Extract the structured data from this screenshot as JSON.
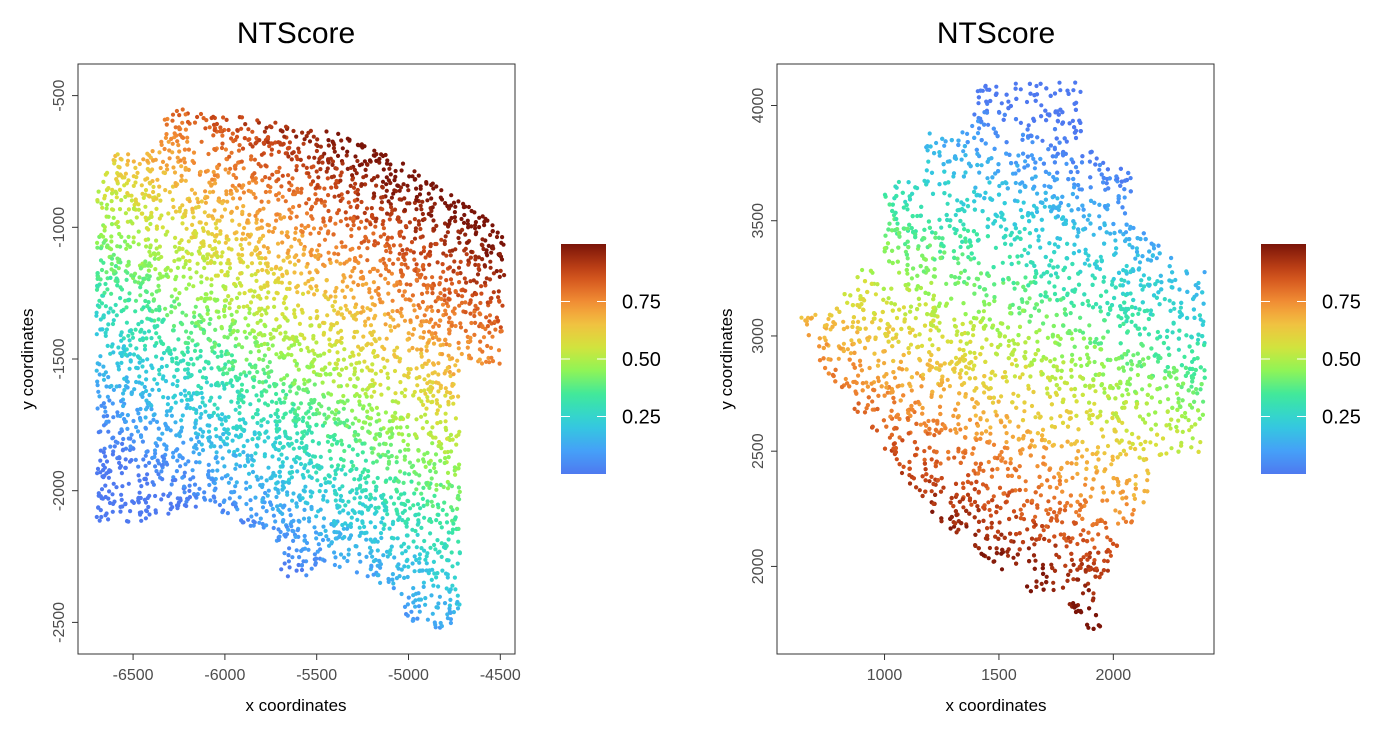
{
  "chart_data": [
    {
      "type": "scatter",
      "title": "NTScore",
      "xlabel": "x coordinates",
      "ylabel": "y coordinates",
      "xlim": [
        -6800,
        -4420
      ],
      "ylim": [
        -2620,
        -380
      ],
      "xticks": [
        -6500,
        -6000,
        -5500,
        -5000,
        -4500
      ],
      "yticks": [
        -500,
        -1000,
        -1500,
        -2000,
        -2500
      ],
      "xtick_labels": [
        "-6500",
        "-6000",
        "-5500",
        "-5000",
        "-4500"
      ],
      "ytick_labels": [
        "-500",
        "-1000",
        "-1500",
        "-2000",
        "-2500"
      ],
      "color_variable": "NTScore",
      "color_range": [
        0,
        1
      ],
      "legend": {
        "position": "right",
        "ticks": [
          0.25,
          0.5,
          0.75
        ],
        "labels": [
          "0.25",
          "0.50",
          "0.75"
        ]
      },
      "grid": false,
      "region_outline": [
        [
          -6700,
          -880
        ],
        [
          -6700,
          -2120
        ],
        [
          -6450,
          -2120
        ],
        [
          -6100,
          -2050
        ],
        [
          -5700,
          -2200
        ],
        [
          -5700,
          -2330
        ],
        [
          -5550,
          -2330
        ],
        [
          -5450,
          -2280
        ],
        [
          -5050,
          -2380
        ],
        [
          -5000,
          -2520
        ],
        [
          -4780,
          -2520
        ],
        [
          -4720,
          -2460
        ],
        [
          -4720,
          -1520
        ],
        [
          -4500,
          -1520
        ],
        [
          -4470,
          -1040
        ],
        [
          -4580,
          -960
        ],
        [
          -4800,
          -860
        ],
        [
          -5000,
          -760
        ],
        [
          -5400,
          -640
        ],
        [
          -5900,
          -580
        ],
        [
          -6250,
          -550
        ],
        [
          -6330,
          -580
        ],
        [
          -6350,
          -690
        ],
        [
          -6600,
          -720
        ]
      ],
      "gradient": {
        "from": [
          -6000,
          -2150
        ],
        "to": [
          -5300,
          -700
        ]
      },
      "n_points": 4200
    },
    {
      "type": "scatter",
      "title": "NTScore",
      "xlabel": "x coordinates",
      "ylabel": "y coordinates",
      "xlim": [
        530,
        2440
      ],
      "ylim": [
        1620,
        4180
      ],
      "xticks": [
        1000,
        1500,
        2000
      ],
      "yticks": [
        2000,
        2500,
        3000,
        3500,
        4000
      ],
      "xtick_labels": [
        "1000",
        "1500",
        "2000"
      ],
      "ytick_labels": [
        "2000",
        "2500",
        "3000",
        "3500",
        "4000"
      ],
      "color_variable": "NTScore",
      "color_range": [
        0,
        1
      ],
      "legend": {
        "position": "right",
        "ticks": [
          0.25,
          0.5,
          0.75
        ],
        "labels": [
          "0.25",
          "0.50",
          "0.75"
        ]
      },
      "grid": false,
      "region_outline": [
        [
          620,
          3100
        ],
        [
          760,
          3090
        ],
        [
          900,
          3290
        ],
        [
          1000,
          3300
        ],
        [
          1000,
          3700
        ],
        [
          1150,
          3700
        ],
        [
          1200,
          3900
        ],
        [
          1380,
          3900
        ],
        [
          1400,
          4100
        ],
        [
          1860,
          4100
        ],
        [
          1860,
          3830
        ],
        [
          2080,
          3730
        ],
        [
          2080,
          3500
        ],
        [
          2260,
          3360
        ],
        [
          2300,
          3280
        ],
        [
          2400,
          3280
        ],
        [
          2400,
          2480
        ],
        [
          2180,
          2480
        ],
        [
          2150,
          2240
        ],
        [
          2100,
          2240
        ],
        [
          2080,
          2070
        ],
        [
          2000,
          2040
        ],
        [
          1920,
          1830
        ],
        [
          1960,
          1700
        ],
        [
          1900,
          1700
        ],
        [
          1830,
          1800
        ],
        [
          1780,
          1860
        ],
        [
          1640,
          1890
        ],
        [
          1520,
          1960
        ],
        [
          1400,
          2060
        ],
        [
          1200,
          2240
        ],
        [
          1000,
          2500
        ],
        [
          850,
          2700
        ],
        [
          700,
          2920
        ]
      ],
      "gradient": {
        "from": [
          1800,
          3850
        ],
        "to": [
          1000,
          2250
        ]
      },
      "n_points": 3900
    }
  ]
}
